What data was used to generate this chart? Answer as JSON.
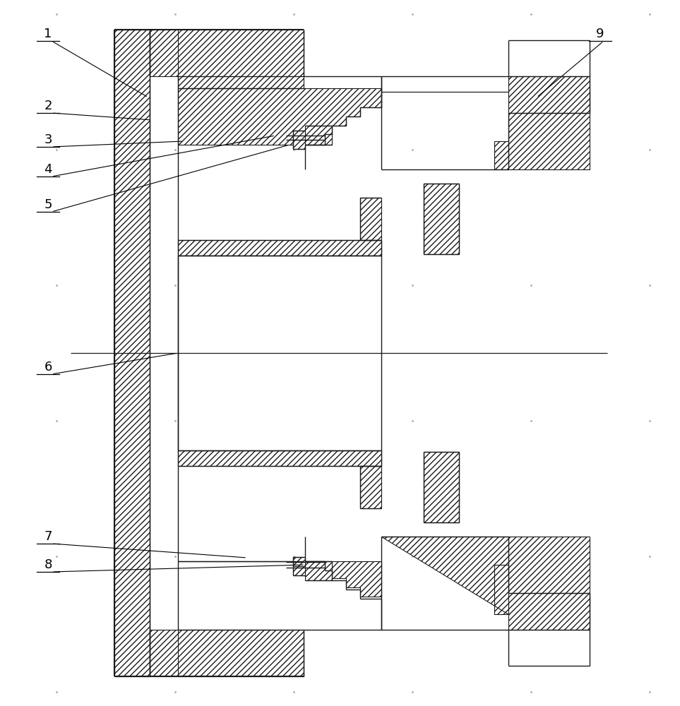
{
  "bg_color": "#ffffff",
  "line_color": "#1a1a1a",
  "figsize": [
    9.63,
    10.0
  ],
  "dpi": 100,
  "label_fontsize": 13
}
